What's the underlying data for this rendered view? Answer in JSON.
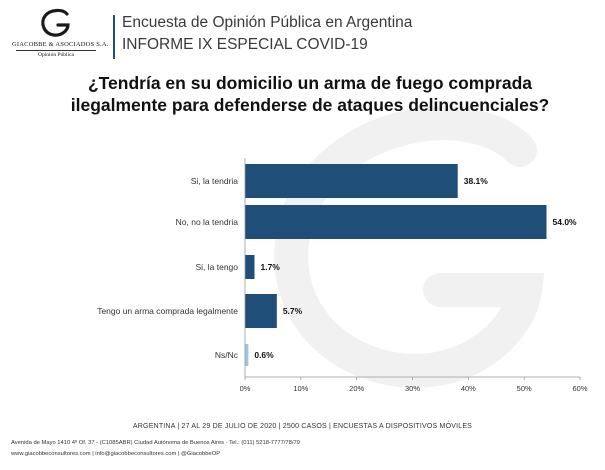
{
  "logo": {
    "company": "GIACOBBE & ASOCIADOS S.A.",
    "subtitle": "Opinión Pública"
  },
  "header": {
    "title": "Encuesta de Opinión Pública en Argentina",
    "subtitle": "INFORME IX ESPECIAL COVID-19"
  },
  "chart_data": {
    "type": "bar",
    "orientation": "horizontal",
    "title": "¿Tendría en su domicilio un arma de fuego comprada ilegalmente para defenderse de ataques delincuenciales?",
    "categories": [
      "Si, la tendria",
      "No, no la tendria",
      "Si, la tengo",
      "Tengo un arma comprada legalmente",
      "Ns/Nc"
    ],
    "values": [
      38.1,
      54.0,
      1.7,
      5.7,
      0.6
    ],
    "value_labels": [
      "38.1%",
      "54.0%",
      "1.7%",
      "5.7%",
      "0.6%"
    ],
    "bar_colors": [
      "#1f4e79",
      "#1f4e79",
      "#1f4e79",
      "#1f4e79",
      "#9dc3e6"
    ],
    "xlim": [
      0,
      60
    ],
    "xticks": [
      "0%",
      "10%",
      "20%",
      "30%",
      "40%",
      "50%",
      "60%"
    ],
    "grid": false,
    "legend": "none"
  },
  "footer": {
    "meta": "ARGENTINA | 27 AL 29 DE JULIO DE 2020 | 2500 CASOS | ENCUESTAS A DISPOSITIVOS MÓVILES",
    "address": "Avenida de Mayo 1410 4º Of. 37 - (C1085ABR) Ciudad Autónoma de Buenos Aires - Tel.: (011) 5218-7777/78/79",
    "contact": "www.giacobbeconsultores.com | info@giacobbeconsultores.com | @GiacobbeOP"
  }
}
